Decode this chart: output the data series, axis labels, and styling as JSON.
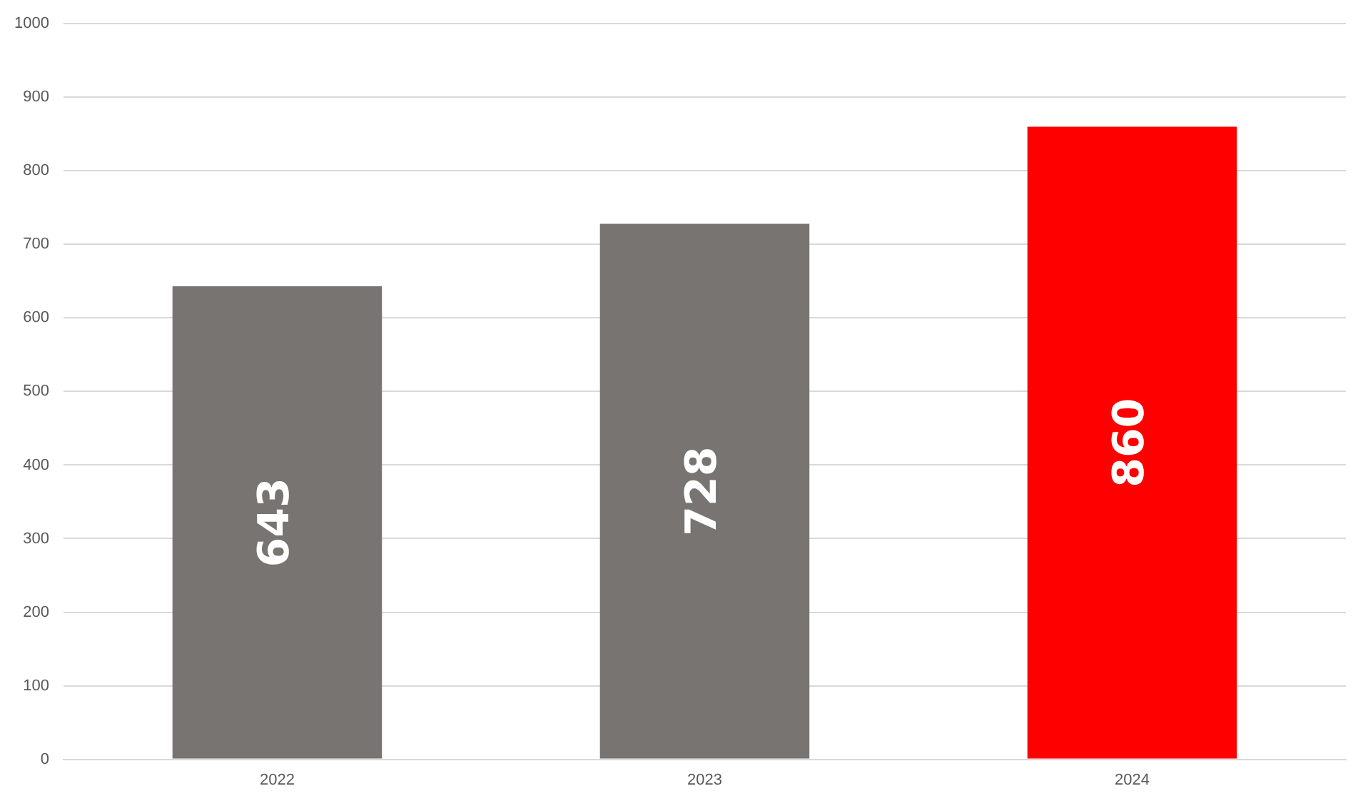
{
  "chart_data": {
    "type": "bar",
    "categories": [
      "2022",
      "2023",
      "2024"
    ],
    "values": [
      643,
      728,
      860
    ],
    "colors": [
      "#787472",
      "#787472",
      "#ff0000"
    ],
    "ylim": [
      0,
      1000
    ],
    "yticks": [
      0,
      100,
      200,
      300,
      400,
      500,
      600,
      700,
      800,
      900,
      1000
    ],
    "grid": "y",
    "data_labels": true,
    "legend": false
  }
}
